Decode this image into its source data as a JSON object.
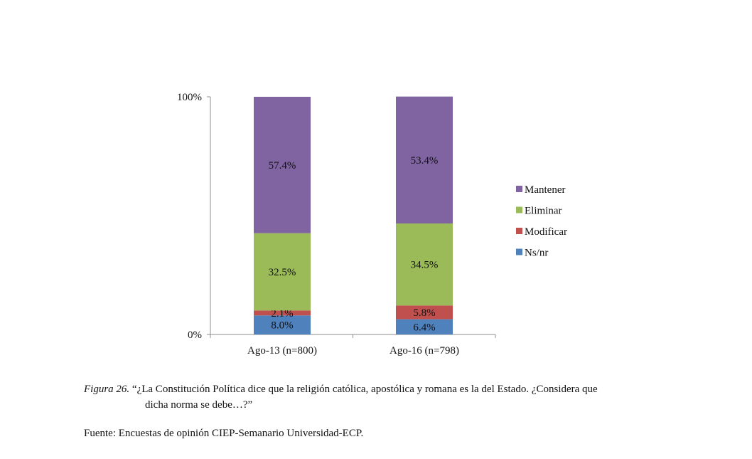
{
  "chart_data": {
    "type": "bar",
    "stacked": true,
    "categories": [
      "Ago-13 (n=800)",
      "Ago-16 (n=798)"
    ],
    "series": [
      {
        "name": "Ns/nr",
        "values": [
          8.0,
          6.4
        ],
        "labels": [
          "8.0%",
          "6.4%"
        ],
        "color": "#4f81bd"
      },
      {
        "name": "Modificar",
        "values": [
          2.1,
          5.8
        ],
        "labels": [
          "2.1%",
          "5.8%"
        ],
        "color": "#c0504d"
      },
      {
        "name": "Eliminar",
        "values": [
          32.5,
          34.5
        ],
        "labels": [
          "32.5%",
          "34.5%"
        ],
        "color": "#9bbb59"
      },
      {
        "name": "Mantener",
        "values": [
          57.4,
          53.4
        ],
        "labels": [
          "57.4%",
          "53.4%"
        ],
        "color": "#8064a2"
      }
    ],
    "legend_order": [
      "Mantener",
      "Eliminar",
      "Modificar",
      "Ns/nr"
    ],
    "y_ticks": [
      "0%",
      "100%"
    ],
    "ylim": [
      0,
      100
    ],
    "legend": "right",
    "grid": false
  },
  "caption": {
    "figure_label": "Figura 26.",
    "text_line1": " “¿La Constitución Política dice que la religión católica, apostólica y romana es la del Estado. ¿Considera que",
    "text_line2": "dicha norma se debe…?”"
  },
  "source": "Fuente: Encuestas de opinión CIEP-Semanario Universidad-ECP."
}
